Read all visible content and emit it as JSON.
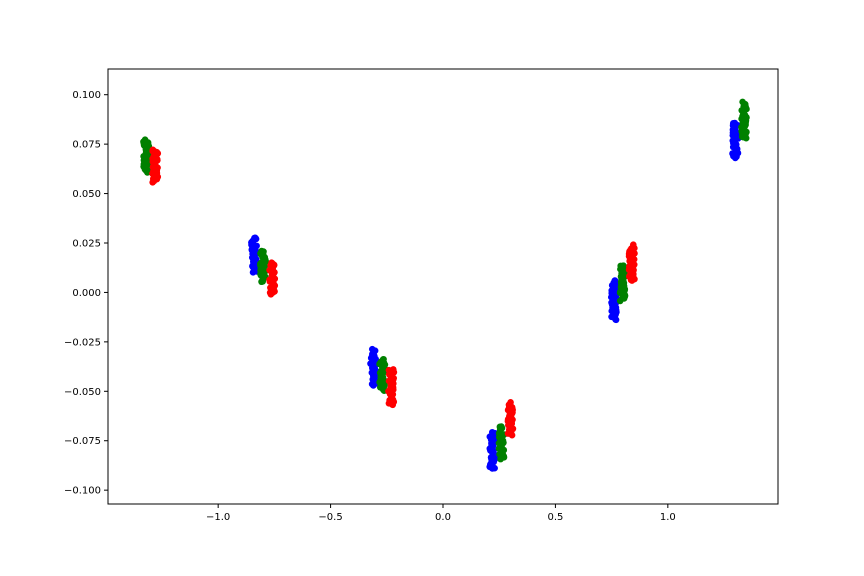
{
  "chart_data": {
    "type": "scatter",
    "title": "",
    "xlabel": "",
    "ylabel": "",
    "xlim": [
      -1.49,
      1.49
    ],
    "ylim": [
      -0.107,
      0.113
    ],
    "grid": false,
    "legend": "none",
    "x_ticks": [
      -1.0,
      -0.5,
      0.0,
      0.5,
      1.0
    ],
    "x_tick_labels": [
      "−1.0",
      "−0.5",
      "0.0",
      "0.5",
      "1.0"
    ],
    "y_ticks": [
      0.1,
      0.075,
      0.05,
      0.025,
      0.0,
      -0.025,
      -0.05,
      -0.075,
      -0.1
    ],
    "y_tick_labels": [
      "0.100",
      "0.075",
      "0.050",
      "0.025",
      "0.000",
      "−0.025",
      "−0.050",
      "−0.075",
      "−0.100"
    ],
    "series": [
      {
        "color": "#0000ff",
        "clusters": [
          {
            "x": -0.84,
            "y": 0.019,
            "y_spread": 0.009
          },
          {
            "x": -0.31,
            "y": -0.038,
            "y_spread": 0.009
          },
          {
            "x": 0.22,
            "y": -0.08,
            "y_spread": 0.009
          },
          {
            "x": 0.76,
            "y": -0.004,
            "y_spread": 0.01
          },
          {
            "x": 1.3,
            "y": 0.077,
            "y_spread": 0.009
          }
        ]
      },
      {
        "color": "#008000",
        "clusters": [
          {
            "x": -1.32,
            "y": 0.069,
            "y_spread": 0.008
          },
          {
            "x": -0.8,
            "y": 0.013,
            "y_spread": 0.008
          },
          {
            "x": -0.27,
            "y": -0.042,
            "y_spread": 0.008
          },
          {
            "x": 0.26,
            "y": -0.076,
            "y_spread": 0.008
          },
          {
            "x": 0.8,
            "y": 0.005,
            "y_spread": 0.009
          },
          {
            "x": 1.34,
            "y": 0.087,
            "y_spread": 0.009
          }
        ]
      },
      {
        "color": "#ff0000",
        "clusters": [
          {
            "x": -1.28,
            "y": 0.064,
            "y_spread": 0.008
          },
          {
            "x": -0.76,
            "y": 0.007,
            "y_spread": 0.008
          },
          {
            "x": -0.23,
            "y": -0.048,
            "y_spread": 0.009
          },
          {
            "x": 0.3,
            "y": -0.064,
            "y_spread": 0.008
          },
          {
            "x": 0.84,
            "y": 0.015,
            "y_spread": 0.009
          }
        ]
      }
    ]
  }
}
